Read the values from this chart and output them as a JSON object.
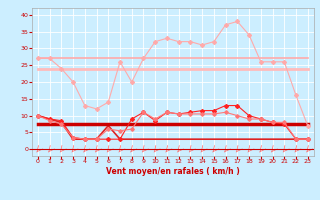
{
  "xlabel": "Vent moyen/en rafales ( km/h )",
  "bg_color": "#cceeff",
  "grid_color": "#ffffff",
  "x_ticks": [
    0,
    1,
    2,
    3,
    4,
    5,
    6,
    7,
    8,
    9,
    10,
    11,
    12,
    13,
    14,
    15,
    16,
    17,
    18,
    19,
    20,
    21,
    22,
    23
  ],
  "ylim": [
    -2,
    42
  ],
  "xlim": [
    -0.5,
    23.5
  ],
  "yticks": [
    0,
    5,
    10,
    15,
    20,
    25,
    30,
    35,
    40
  ],
  "lines": [
    {
      "x": [
        0,
        1,
        2,
        3,
        4,
        5,
        6,
        7,
        8,
        9,
        10,
        11,
        12,
        13,
        14,
        15,
        16,
        17,
        18,
        19,
        20,
        21,
        22,
        23
      ],
      "y": [
        27,
        27,
        27,
        27,
        27,
        27,
        27,
        27,
        27,
        27,
        27,
        27,
        27,
        27,
        27,
        27,
        27,
        27,
        27,
        27,
        27,
        27,
        27,
        27
      ],
      "color": "#ffaaaa",
      "lw": 1.2,
      "marker": null,
      "ms": 0
    },
    {
      "x": [
        0,
        1,
        2,
        3,
        4,
        5,
        6,
        7,
        8,
        9,
        10,
        11,
        12,
        13,
        14,
        15,
        16,
        17,
        18,
        19,
        20,
        21,
        22,
        23
      ],
      "y": [
        24,
        24,
        24,
        24,
        24,
        24,
        24,
        24,
        24,
        24,
        24,
        24,
        24,
        24,
        24,
        24,
        24,
        24,
        24,
        24,
        24,
        24,
        24,
        24
      ],
      "color": "#ffbbbb",
      "lw": 2.0,
      "marker": null,
      "ms": 0
    },
    {
      "x": [
        0,
        1,
        2,
        3,
        4,
        5,
        6,
        7,
        8,
        9,
        10,
        11,
        12,
        13,
        14,
        15,
        16,
        17,
        18,
        19,
        20,
        21,
        22,
        23
      ],
      "y": [
        10,
        9,
        8,
        3,
        3,
        3,
        7,
        3,
        3,
        3,
        3,
        3,
        3,
        3,
        3,
        3,
        3,
        3,
        3,
        3,
        3,
        3,
        3,
        3
      ],
      "color": "#dd2222",
      "lw": 1.2,
      "marker": null,
      "ms": 0
    },
    {
      "x": [
        0,
        1,
        2,
        3,
        4,
        5,
        6,
        7,
        8,
        9,
        10,
        11,
        12,
        13,
        14,
        15,
        16,
        17,
        18,
        19,
        20,
        21,
        22,
        23
      ],
      "y": [
        7.5,
        7.5,
        7.5,
        7.5,
        7.5,
        7.5,
        7.5,
        7.5,
        7.5,
        7.5,
        7.5,
        7.5,
        7.5,
        7.5,
        7.5,
        7.5,
        7.5,
        7.5,
        7.5,
        7.5,
        7.5,
        7.5,
        7.5,
        7.5
      ],
      "color": "#cc0000",
      "lw": 2.5,
      "marker": null,
      "ms": 0
    },
    {
      "x": [
        0,
        1,
        2,
        3,
        4,
        5,
        6,
        7,
        8,
        9,
        10,
        11,
        12,
        13,
        14,
        15,
        16,
        17,
        18,
        19,
        20,
        21,
        22,
        23
      ],
      "y": [
        10,
        9,
        8.5,
        3.5,
        3,
        3,
        3,
        3,
        9,
        11,
        8.5,
        11,
        10.5,
        11,
        11.5,
        11.5,
        13,
        13,
        10,
        9,
        8,
        7.5,
        3,
        3
      ],
      "color": "#ff2222",
      "lw": 0.8,
      "marker": "D",
      "ms": 2.0
    },
    {
      "x": [
        0,
        1,
        2,
        3,
        4,
        5,
        6,
        7,
        8,
        9,
        10,
        11,
        12,
        13,
        14,
        15,
        16,
        17,
        18,
        19,
        20,
        21,
        22,
        23
      ],
      "y": [
        27,
        27,
        24,
        20,
        13,
        12,
        14,
        26,
        20,
        27,
        32,
        33,
        32,
        32,
        31,
        32,
        37,
        38,
        34,
        26,
        26,
        26,
        16,
        7
      ],
      "color": "#ffaaaa",
      "lw": 0.8,
      "marker": "D",
      "ms": 2.0
    },
    {
      "x": [
        0,
        1,
        2,
        3,
        4,
        5,
        6,
        7,
        8,
        9,
        10,
        11,
        12,
        13,
        14,
        15,
        16,
        17,
        18,
        19,
        20,
        21,
        22,
        23
      ],
      "y": [
        10,
        8.5,
        7.5,
        3.5,
        3,
        3,
        6,
        5.5,
        6,
        11,
        9,
        11,
        10.5,
        10.5,
        10.5,
        10.5,
        11,
        10,
        9,
        9,
        8,
        8,
        3,
        3
      ],
      "color": "#ff7777",
      "lw": 0.8,
      "marker": "D",
      "ms": 1.8
    }
  ],
  "arrow_color": "#ff6666",
  "label_color": "#cc0000",
  "tick_color": "#cc0000"
}
